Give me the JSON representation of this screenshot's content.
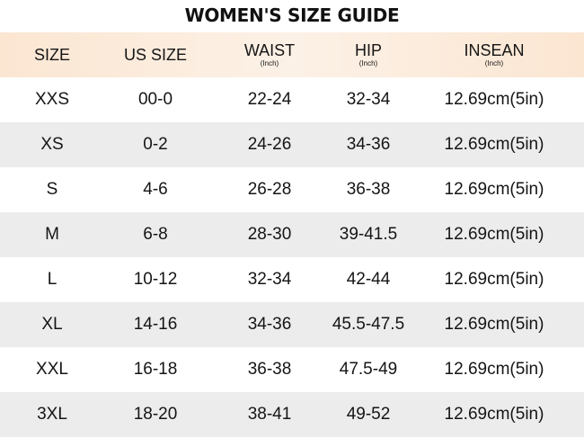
{
  "title": "WOMEN'S SIZE GUIDE",
  "headers": [
    {
      "label": "SIZE",
      "unit": ""
    },
    {
      "label": "US SIZE",
      "unit": ""
    },
    {
      "label": "WAIST",
      "unit": "(Inch)"
    },
    {
      "label": "HIP",
      "unit": "(Inch)"
    },
    {
      "label": "INSEAN",
      "unit": "(Inch)"
    }
  ],
  "rows": [
    {
      "size": "XXS",
      "us_size": "00-0",
      "waist": "22-24",
      "hip": "32-34",
      "insean": "12.69cm(5in)"
    },
    {
      "size": "XS",
      "us_size": "0-2",
      "waist": "24-26",
      "hip": "34-36",
      "insean": "12.69cm(5in)"
    },
    {
      "size": "S",
      "us_size": "4-6",
      "waist": "26-28",
      "hip": "36-38",
      "insean": "12.69cm(5in)"
    },
    {
      "size": "M",
      "us_size": "6-8",
      "waist": "28-30",
      "hip": "39-41.5",
      "insean": "12.69cm(5in)"
    },
    {
      "size": "L",
      "us_size": "10-12",
      "waist": "32-34",
      "hip": "42-44",
      "insean": "12.69cm(5in)"
    },
    {
      "size": "XL",
      "us_size": "14-16",
      "waist": "34-36",
      "hip": "45.5-47.5",
      "insean": "12.69cm(5in)"
    },
    {
      "size": "XXL",
      "us_size": "16-18",
      "waist": "36-38",
      "hip": "47.5-49",
      "insean": "12.69cm(5in)"
    },
    {
      "size": "3XL",
      "us_size": "18-20",
      "waist": "38-41",
      "hip": "49-52",
      "insean": "12.69cm(5in)"
    }
  ],
  "colors": {
    "header_band": "#fbe6d2",
    "shaded_row": "#ececec",
    "text": "#151515"
  }
}
